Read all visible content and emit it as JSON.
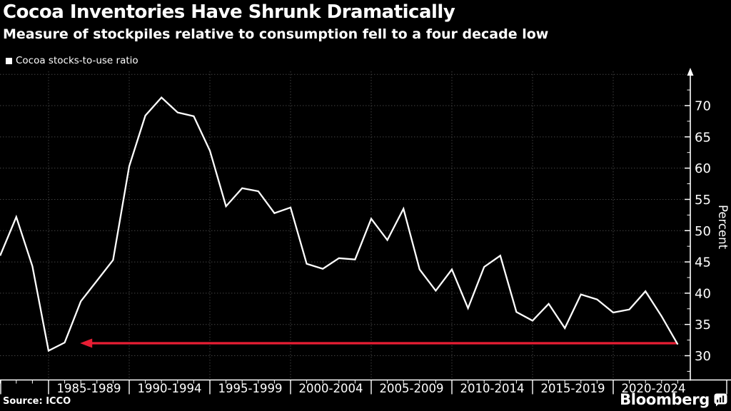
{
  "header": {
    "title": "Cocoa Inventories Have Shrunk Dramatically",
    "subtitle": "Measure of stockpiles relative to consumption fell to a four decade low"
  },
  "legend": {
    "label": "Cocoa stocks-to-use ratio",
    "marker_color": "#ffffff"
  },
  "footer": {
    "source": "Source: ICCO",
    "brand": "Bloomberg"
  },
  "colors": {
    "background": "#000000",
    "text": "#ffffff",
    "line": "#ffffff",
    "grid": "#454545",
    "axis": "#ffffff",
    "arrow": "#e81e34"
  },
  "chart_data": {
    "type": "line",
    "title": "Cocoa Inventories Have Shrunk Dramatically",
    "subtitle": "Measure of stockpiles relative to consumption fell to a four decade low",
    "ylabel": "Percent",
    "ylim": [
      26,
      75.5
    ],
    "grid": true,
    "legend_position": "top-left",
    "yticks": [
      30,
      35,
      40,
      45,
      50,
      55,
      60,
      65,
      70
    ],
    "xtick_labels": [
      "1985-1989",
      "1990-1994",
      "1995-1999",
      "2000-2004",
      "2005-2009",
      "2010-2014",
      "2015-2019",
      "2020-2024"
    ],
    "series": [
      {
        "name": "Cocoa stocks-to-use ratio",
        "color": "#ffffff",
        "x": [
          1982,
          1983,
          1984,
          1985,
          1986,
          1987,
          1988,
          1989,
          1990,
          1991,
          1992,
          1993,
          1994,
          1995,
          1996,
          1997,
          1998,
          1999,
          2000,
          2001,
          2002,
          2003,
          2004,
          2005,
          2006,
          2007,
          2008,
          2009,
          2010,
          2011,
          2012,
          2013,
          2014,
          2015,
          2016,
          2017,
          2018,
          2019,
          2020,
          2021,
          2022,
          2023,
          2024
        ],
        "values": [
          46.0,
          52.2,
          44.3,
          30.8,
          32.1,
          38.7,
          42.0,
          45.3,
          60.3,
          68.4,
          71.3,
          68.9,
          68.3,
          62.8,
          53.9,
          56.8,
          56.3,
          52.8,
          53.7,
          44.7,
          43.9,
          45.6,
          45.4,
          51.9,
          48.5,
          53.5,
          43.8,
          40.4,
          43.8,
          37.6,
          44.2,
          46.0,
          37.0,
          35.6,
          38.3,
          34.4,
          39.8,
          39.0,
          36.9,
          37.4,
          40.3,
          36.3,
          31.8
        ]
      }
    ],
    "annotation_arrow": {
      "description": "four decade low level line",
      "y_value": 32,
      "tip_year": 1987,
      "tail_year": 2024,
      "points_left": true,
      "color": "#e81e34"
    }
  }
}
